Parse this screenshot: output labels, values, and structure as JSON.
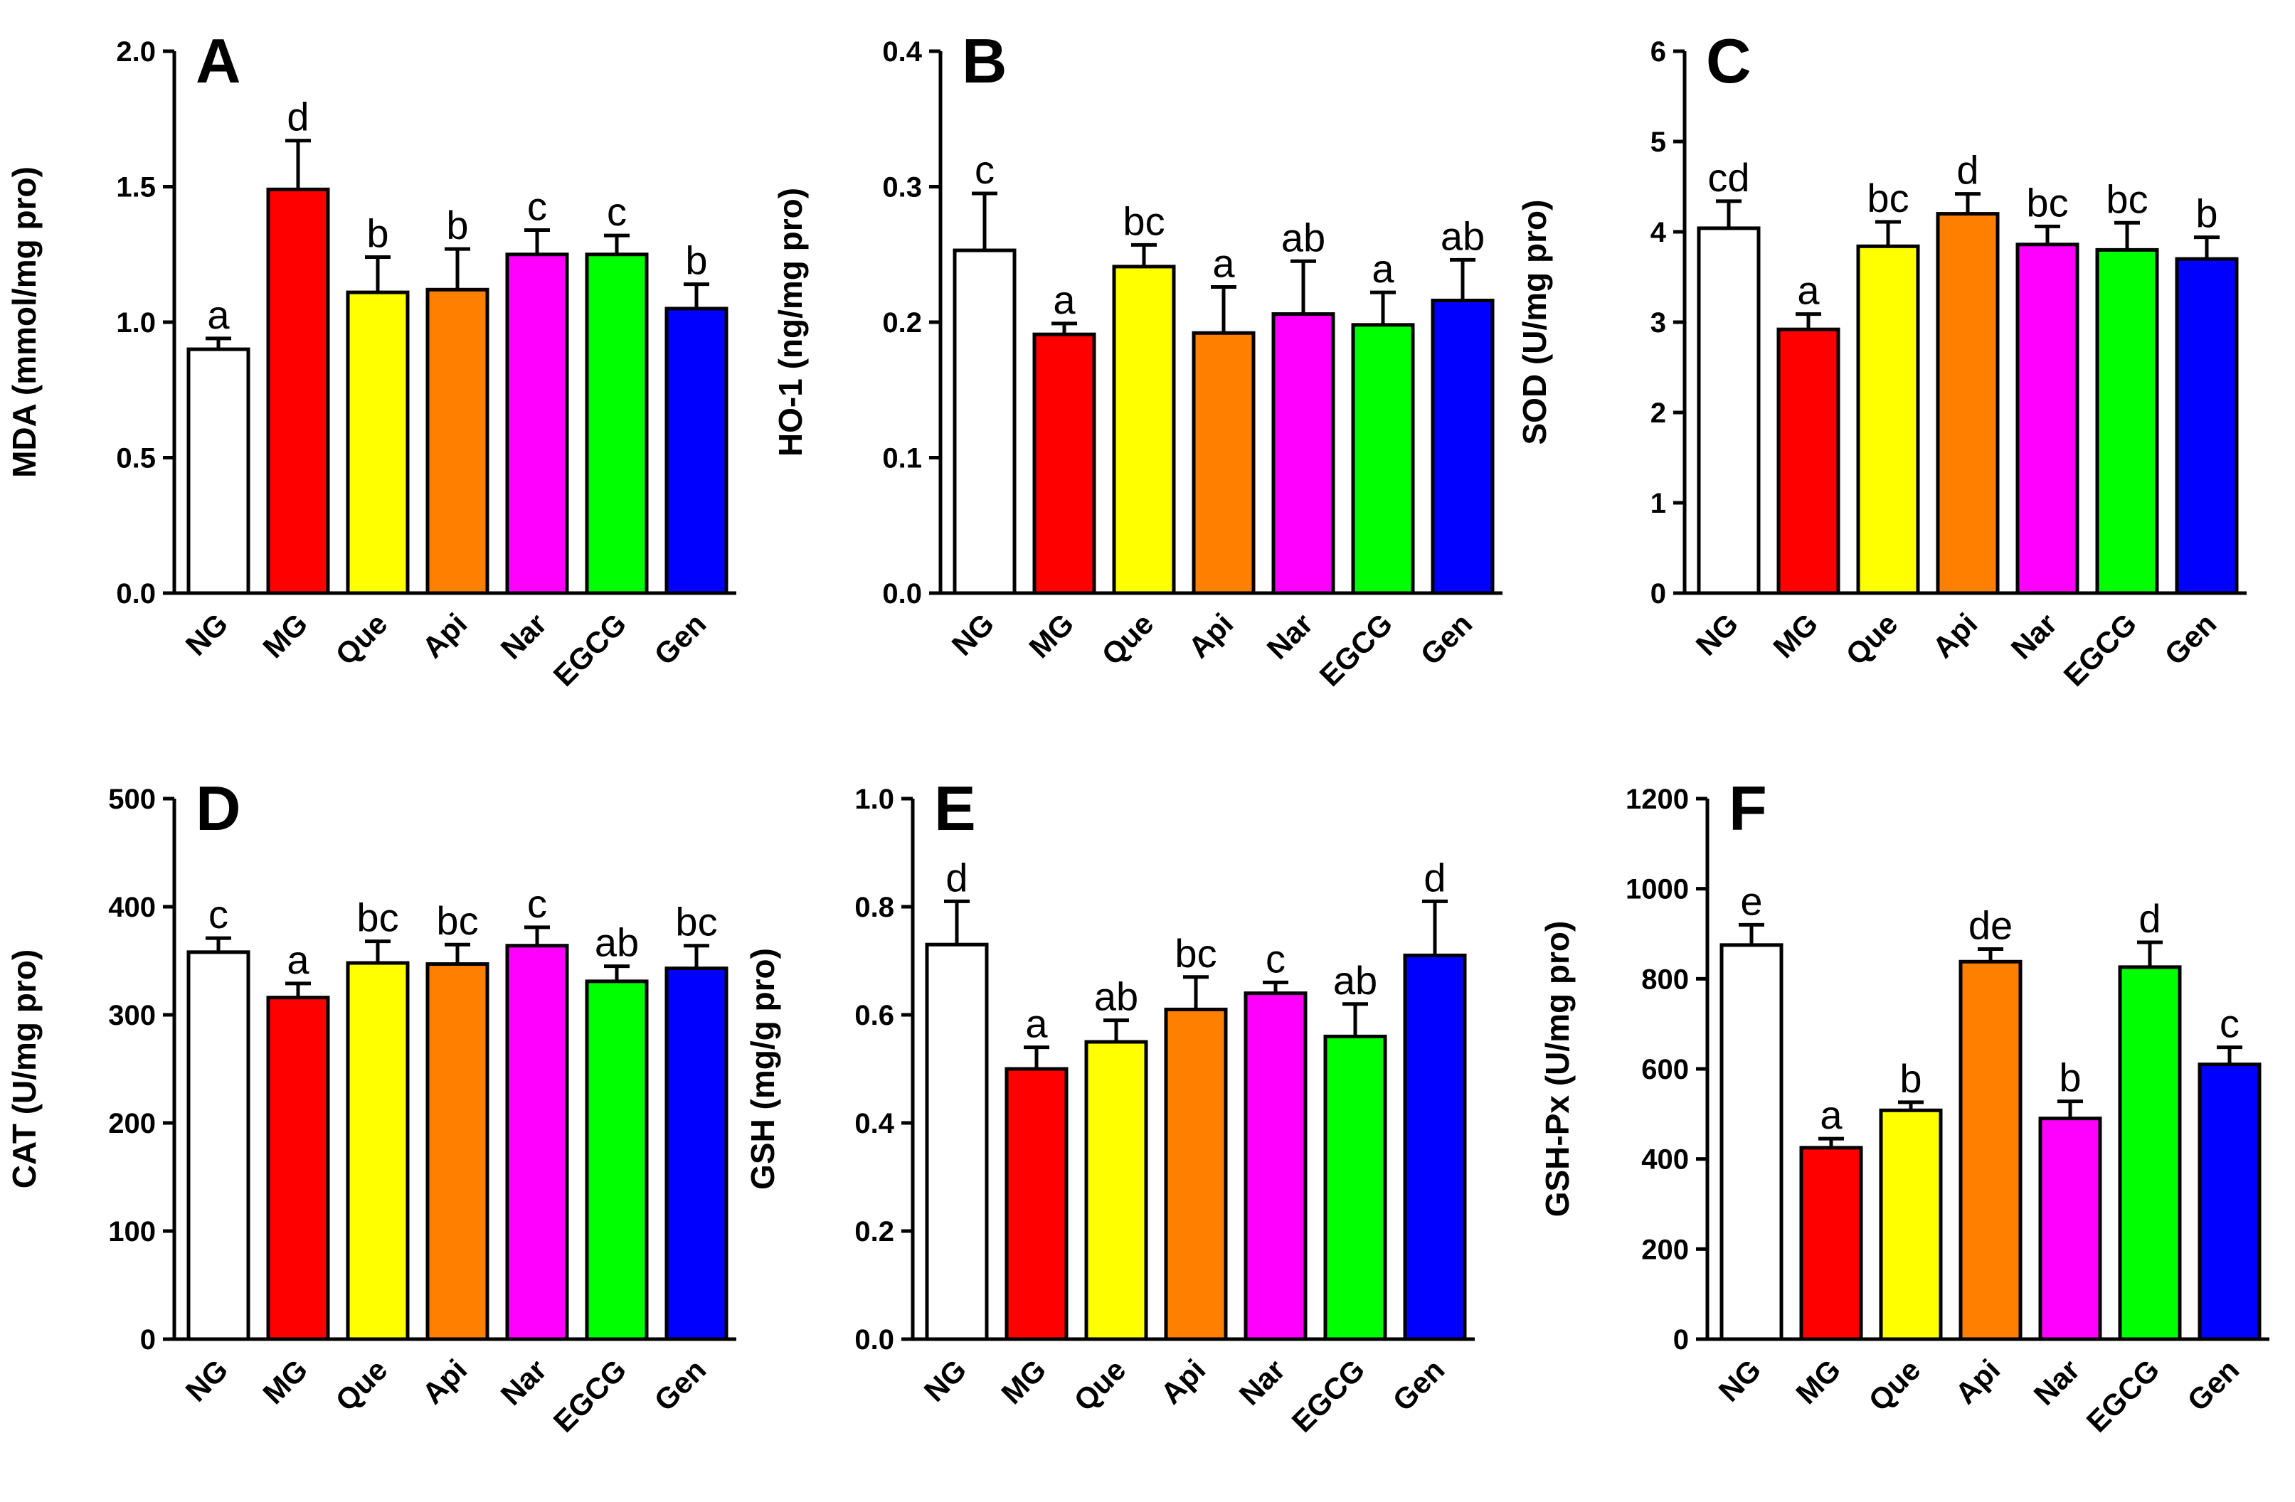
{
  "chart_data": [
    {
      "panel": "A",
      "type": "bar",
      "ylabel": "MDA (mmol/mg pro)",
      "ylim": [
        0,
        2.0
      ],
      "yticks": [
        "0.0",
        "0.5",
        "1.0",
        "1.5",
        "2.0"
      ],
      "categories": [
        "NG",
        "MG",
        "Que",
        "Api",
        "Nar",
        "EGCG",
        "Gen"
      ],
      "values": [
        0.9,
        1.49,
        1.11,
        1.12,
        1.25,
        1.25,
        1.05
      ],
      "errors": [
        0.04,
        0.18,
        0.13,
        0.15,
        0.09,
        0.07,
        0.09
      ],
      "letters": [
        "a",
        "d",
        "b",
        "b",
        "c",
        "c",
        "b"
      ]
    },
    {
      "panel": "B",
      "type": "bar",
      "ylabel": "HO-1 (ng/mg pro)",
      "ylim": [
        0,
        0.4
      ],
      "yticks": [
        "0.0",
        "0.1",
        "0.2",
        "0.3",
        "0.4"
      ],
      "categories": [
        "NG",
        "MG",
        "Que",
        "Api",
        "Nar",
        "EGCG",
        "Gen"
      ],
      "values": [
        0.253,
        0.191,
        0.241,
        0.192,
        0.206,
        0.198,
        0.216
      ],
      "errors": [
        0.042,
        0.008,
        0.016,
        0.034,
        0.039,
        0.024,
        0.03
      ],
      "letters": [
        "c",
        "a",
        "bc",
        "a",
        "ab",
        "a",
        "ab"
      ]
    },
    {
      "panel": "C",
      "type": "bar",
      "ylabel": "SOD (U/mg pro)",
      "ylim": [
        0,
        6
      ],
      "yticks": [
        "0",
        "1",
        "2",
        "3",
        "4",
        "5",
        "6"
      ],
      "categories": [
        "NG",
        "MG",
        "Que",
        "Api",
        "Nar",
        "EGCG",
        "Gen"
      ],
      "values": [
        4.04,
        2.92,
        3.84,
        4.2,
        3.86,
        3.8,
        3.7
      ],
      "errors": [
        0.3,
        0.17,
        0.27,
        0.22,
        0.2,
        0.3,
        0.24
      ],
      "letters": [
        "cd",
        "a",
        "bc",
        "d",
        "bc",
        "bc",
        "b"
      ]
    },
    {
      "panel": "D",
      "type": "bar",
      "ylabel": "CAT (U/mg pro)",
      "ylim": [
        0,
        500
      ],
      "yticks": [
        "0",
        "100",
        "200",
        "300",
        "400",
        "500"
      ],
      "categories": [
        "NG",
        "MG",
        "Que",
        "Api",
        "Nar",
        "EGCG",
        "Gen"
      ],
      "values": [
        358,
        316,
        348,
        347,
        364,
        331,
        343
      ],
      "errors": [
        13,
        13,
        20,
        18,
        17,
        14,
        21
      ],
      "letters": [
        "c",
        "a",
        "bc",
        "bc",
        "c",
        "ab",
        "bc"
      ]
    },
    {
      "panel": "E",
      "type": "bar",
      "ylabel": "GSH (mg/g pro)",
      "ylim": [
        0,
        1.0
      ],
      "yticks": [
        "0.0",
        "0.2",
        "0.4",
        "0.6",
        "0.8",
        "1.0"
      ],
      "categories": [
        "NG",
        "MG",
        "Que",
        "Api",
        "Nar",
        "EGCG",
        "Gen"
      ],
      "values": [
        0.73,
        0.5,
        0.55,
        0.61,
        0.64,
        0.56,
        0.71
      ],
      "errors": [
        0.08,
        0.04,
        0.04,
        0.06,
        0.02,
        0.06,
        0.1
      ],
      "letters": [
        "d",
        "a",
        "ab",
        "bc",
        "c",
        "ab",
        "d"
      ]
    },
    {
      "panel": "F",
      "type": "bar",
      "ylabel": "GSH-Px (U/mg pro)",
      "ylim": [
        0,
        1200
      ],
      "yticks": [
        "0",
        "200",
        "400",
        "600",
        "800",
        "1000",
        "1200"
      ],
      "categories": [
        "NG",
        "MG",
        "Que",
        "Api",
        "Nar",
        "EGCG",
        "Gen"
      ],
      "values": [
        875,
        425,
        508,
        838,
        490,
        826,
        610
      ],
      "errors": [
        45,
        20,
        18,
        28,
        38,
        55,
        38
      ],
      "letters": [
        "e",
        "a",
        "b",
        "de",
        "b",
        "d",
        "c"
      ]
    }
  ],
  "colors": {
    "NG": "#ffffff",
    "MG": "#ff0000",
    "Que": "#ffff00",
    "Api": "#ff8000",
    "Nar": "#ff00ff",
    "EGCG": "#00ff00",
    "Gen": "#0000ff"
  }
}
